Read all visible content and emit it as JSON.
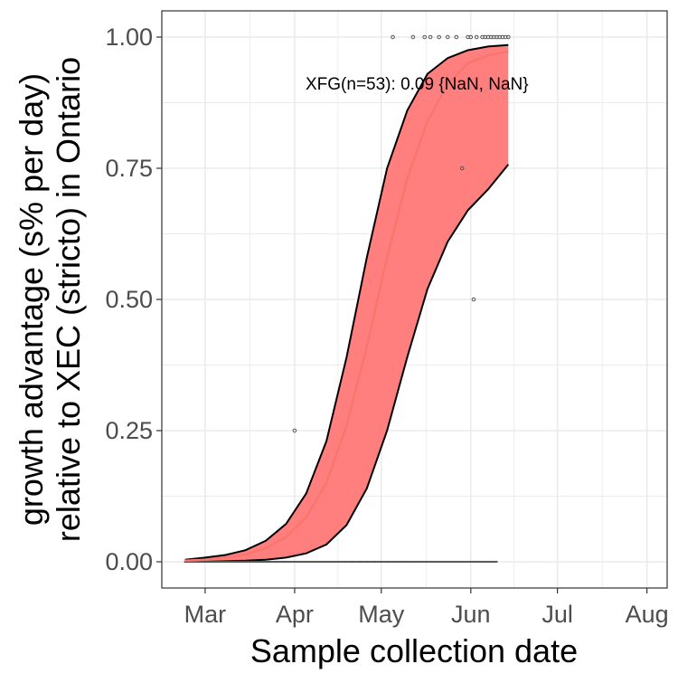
{
  "chart_data": {
    "type": "line",
    "xlabel": "Sample collection date",
    "ylabel_lines": [
      "growth advantage (s% per day)",
      "relative to XEC (stricto) in Ontario"
    ],
    "x_tick_labels": [
      "Mar",
      "Apr",
      "May",
      "Jun",
      "Jul",
      "Aug"
    ],
    "x_ticks": [
      "2025-03-01",
      "2025-04-01",
      "2025-05-01",
      "2025-06-01",
      "2025-07-01",
      "2025-08-01"
    ],
    "xlim": [
      "2025-02-14",
      "2025-08-08"
    ],
    "y_tick_labels": [
      "0.00",
      "0.25",
      "0.50",
      "0.75",
      "1.00"
    ],
    "y_ticks": [
      0,
      0.25,
      0.5,
      0.75,
      1.0
    ],
    "ylim": [
      -0.05,
      1.05
    ],
    "grid": true,
    "annotation": "XFG(n=53): 0.09 {NaN, NaN}",
    "colors": {
      "fit": "#f8766d",
      "band": "#ff7f7f",
      "band_edge": "#000000",
      "points": "#555555",
      "grid": "#ebebeb",
      "panel_border": "#333333"
    },
    "series": [
      {
        "type": "line",
        "x": [
          "2025-02-22",
          "2025-03-01",
          "2025-03-08",
          "2025-03-15",
          "2025-03-22",
          "2025-03-29",
          "2025-04-05",
          "2025-04-12",
          "2025-04-19",
          "2025-04-26",
          "2025-05-03",
          "2025-05-10",
          "2025-05-17",
          "2025-05-24",
          "2025-05-31",
          "2025-06-07",
          "2025-06-14"
        ],
        "y": [
          0.002,
          0.004,
          0.008,
          0.014,
          0.026,
          0.047,
          0.085,
          0.15,
          0.26,
          0.41,
          0.58,
          0.73,
          0.84,
          0.91,
          0.95,
          0.965,
          0.973
        ]
      },
      {
        "type": "area",
        "x": [
          "2025-02-22",
          "2025-03-01",
          "2025-03-08",
          "2025-03-15",
          "2025-03-22",
          "2025-03-29",
          "2025-04-05",
          "2025-04-12",
          "2025-04-19",
          "2025-04-26",
          "2025-05-03",
          "2025-05-10",
          "2025-05-17",
          "2025-05-24",
          "2025-05-31",
          "2025-06-07",
          "2025-06-14"
        ],
        "y_upper": [
          0.004,
          0.008,
          0.013,
          0.022,
          0.04,
          0.072,
          0.13,
          0.23,
          0.39,
          0.58,
          0.75,
          0.86,
          0.93,
          0.96,
          0.975,
          0.982,
          0.985
        ],
        "y_lower": [
          0.0,
          0.0,
          0.001,
          0.002,
          0.004,
          0.008,
          0.016,
          0.033,
          0.07,
          0.14,
          0.25,
          0.39,
          0.52,
          0.61,
          0.67,
          0.71,
          0.757
        ]
      },
      {
        "type": "scatter",
        "x": [
          "2025-04-01",
          "2025-05-29",
          "2025-06-02",
          "2025-05-05",
          "2025-05-12",
          "2025-05-16",
          "2025-05-18",
          "2025-05-21",
          "2025-05-24",
          "2025-05-27",
          "2025-05-31",
          "2025-06-01",
          "2025-06-03",
          "2025-06-05",
          "2025-06-06",
          "2025-06-07",
          "2025-06-08",
          "2025-06-09",
          "2025-06-10",
          "2025-06-11",
          "2025-06-12",
          "2025-06-13",
          "2025-06-14"
        ],
        "y": [
          0.25,
          0.75,
          0.5,
          1,
          1,
          1,
          1,
          1,
          1,
          1,
          1,
          1,
          1,
          1,
          1,
          1,
          1,
          1,
          1,
          1,
          1,
          1,
          1
        ]
      }
    ]
  }
}
